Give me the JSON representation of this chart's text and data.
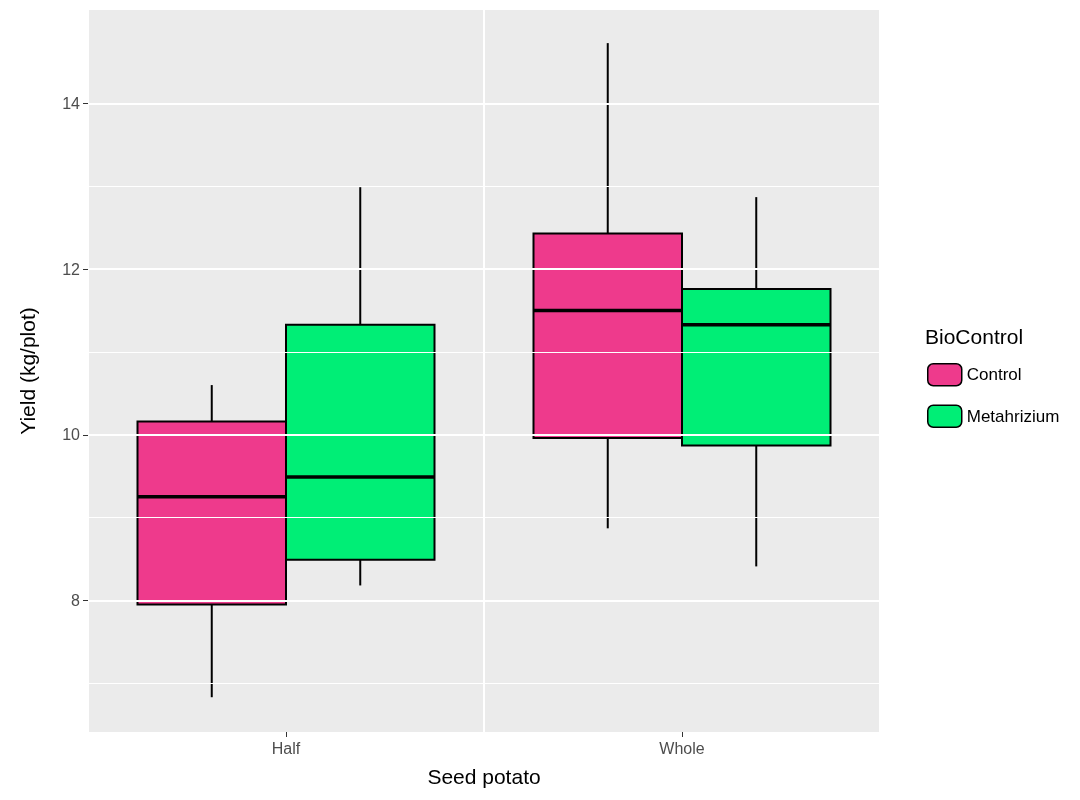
{
  "chart_data": {
    "type": "box",
    "xlabel": "Seed potato",
    "ylabel": "Yield (kg/plot)",
    "legend_title": "BioControl",
    "categories": [
      "Half",
      "Whole"
    ],
    "series": [
      {
        "name": "Control",
        "color": "#ee3a8c",
        "boxes": [
          {
            "low": 6.83,
            "q1": 7.95,
            "median": 9.25,
            "q3": 10.16,
            "high": 10.6
          },
          {
            "low": 8.87,
            "q1": 9.96,
            "median": 11.5,
            "q3": 12.43,
            "high": 14.73
          }
        ]
      },
      {
        "name": "Metahrizium",
        "color": "#00ee76",
        "boxes": [
          {
            "low": 8.18,
            "q1": 8.49,
            "median": 9.49,
            "q3": 11.33,
            "high": 12.99
          },
          {
            "low": 8.41,
            "q1": 9.87,
            "median": 11.33,
            "q3": 11.76,
            "high": 12.87
          }
        ]
      }
    ],
    "ylim": [
      6.41,
      15.13
    ],
    "yticks": [
      {
        "value": 7,
        "label": null
      },
      8,
      {
        "value": 9,
        "label": null
      },
      10,
      {
        "value": 11,
        "label": null
      },
      12,
      {
        "value": 13,
        "label": null
      },
      14
    ],
    "grid": true,
    "legend": "right"
  }
}
